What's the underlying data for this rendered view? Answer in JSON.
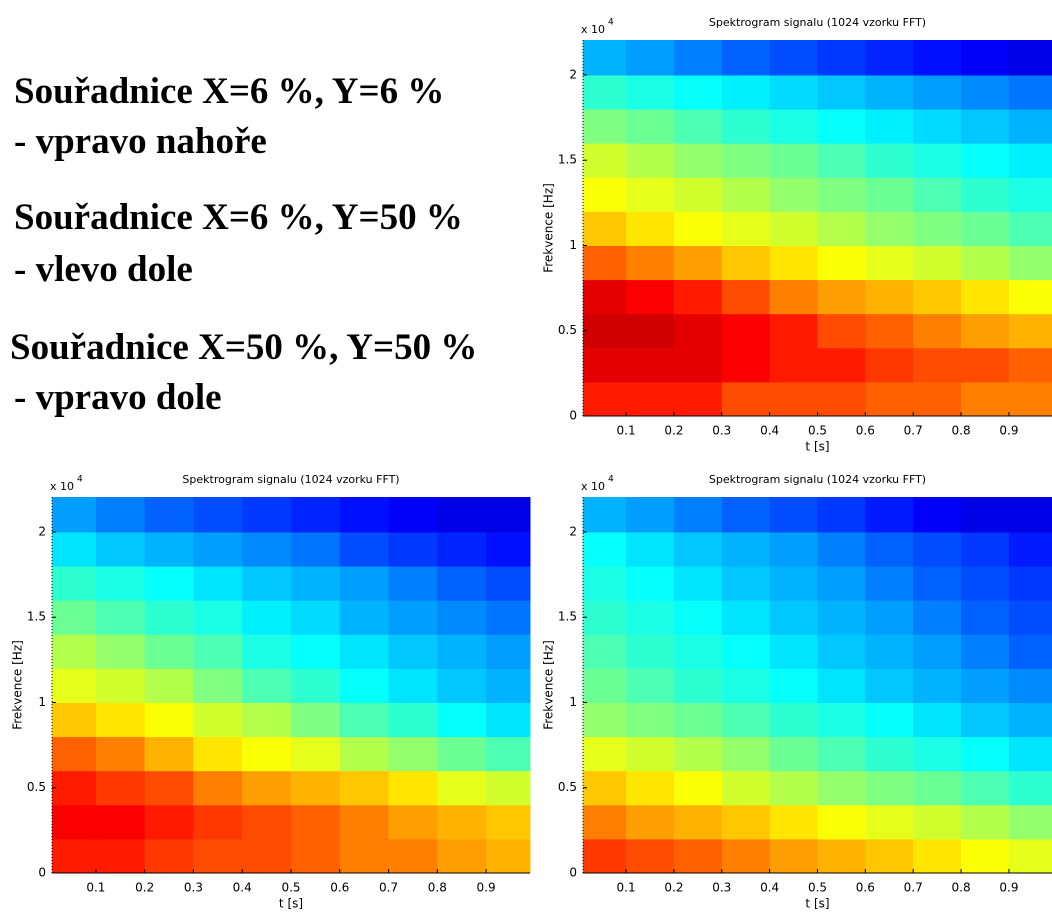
{
  "text_lines": [
    "Souřadnice X=6 %, Y=6 %",
    "- vpravo nahoře",
    "Souřadnice X=6 %, Y=50 %",
    "- vlevo dole",
    "Souřadnice X=50 %, Y=50 %",
    "- vpravo dole"
  ],
  "chart_data": [
    {
      "type": "heatmap",
      "title": "Spektrogram signalu (1024 vzorku FFT)",
      "x_label": "t [s]",
      "y_label": "Frekvence [Hz]",
      "y_multiplier": "x 10",
      "y_multiplier_exponent": "4",
      "colormap": "jet",
      "x": [
        0.01,
        0.1,
        0.2,
        0.3,
        0.4,
        0.5,
        0.6,
        0.7,
        0.8,
        0.9,
        0.99
      ],
      "y": [
        0,
        2000,
        4000,
        6000,
        8000,
        10000,
        12000,
        14000,
        16000,
        18000,
        20000,
        22050
      ],
      "xlim": [
        0.01,
        0.99
      ],
      "ylim": [
        0,
        22050
      ],
      "xticks": [
        0.1,
        0.2,
        0.3,
        0.4,
        0.5,
        0.6,
        0.7,
        0.8,
        0.9
      ],
      "yticks": [
        0,
        {
          "value": 5000,
          "label": "0.5"
        },
        {
          "value": 10000,
          "label": "1"
        },
        {
          "value": 15000,
          "label": "1.5"
        },
        {
          "value": 20000,
          "label": "2"
        }
      ],
      "values": [
        [
          0.85,
          0.85,
          0.85,
          0.8,
          0.8,
          0.8,
          0.78,
          0.78,
          0.75,
          0.75
        ],
        [
          0.9,
          0.9,
          0.9,
          0.88,
          0.85,
          0.85,
          0.82,
          0.8,
          0.8,
          0.78
        ],
        [
          0.92,
          0.92,
          0.9,
          0.88,
          0.85,
          0.8,
          0.78,
          0.75,
          0.72,
          0.7
        ],
        [
          0.9,
          0.88,
          0.85,
          0.8,
          0.75,
          0.72,
          0.7,
          0.68,
          0.65,
          0.62
        ],
        [
          0.78,
          0.75,
          0.72,
          0.68,
          0.65,
          0.62,
          0.6,
          0.58,
          0.55,
          0.52
        ],
        [
          0.68,
          0.65,
          0.62,
          0.6,
          0.58,
          0.55,
          0.52,
          0.5,
          0.48,
          0.45
        ],
        [
          0.62,
          0.6,
          0.58,
          0.55,
          0.52,
          0.5,
          0.48,
          0.45,
          0.42,
          0.4
        ],
        [
          0.58,
          0.55,
          0.52,
          0.5,
          0.48,
          0.45,
          0.42,
          0.4,
          0.38,
          0.36
        ],
        [
          0.5,
          0.48,
          0.45,
          0.42,
          0.4,
          0.38,
          0.36,
          0.34,
          0.32,
          0.3
        ],
        [
          0.42,
          0.4,
          0.38,
          0.36,
          0.34,
          0.32,
          0.3,
          0.28,
          0.26,
          0.24
        ],
        [
          0.3,
          0.28,
          0.25,
          0.22,
          0.2,
          0.18,
          0.16,
          0.14,
          0.12,
          0.1
        ]
      ]
    },
    {
      "type": "heatmap",
      "title": "Spektrogram signalu (1024 vzorku FFT)",
      "x_label": "t [s]",
      "y_label": "Frekvence [Hz]",
      "y_multiplier": "x 10",
      "y_multiplier_exponent": "4",
      "colormap": "jet",
      "x": [
        0.01,
        0.1,
        0.2,
        0.3,
        0.4,
        0.5,
        0.6,
        0.7,
        0.8,
        0.9,
        0.99
      ],
      "y": [
        0,
        2000,
        4000,
        6000,
        8000,
        10000,
        12000,
        14000,
        16000,
        18000,
        20000,
        22050
      ],
      "xlim": [
        0.01,
        0.99
      ],
      "ylim": [
        0,
        22050
      ],
      "xticks": [
        0.1,
        0.2,
        0.3,
        0.4,
        0.5,
        0.6,
        0.7,
        0.8,
        0.9
      ],
      "yticks": [
        0,
        {
          "value": 5000,
          "label": "0.5"
        },
        {
          "value": 10000,
          "label": "1"
        },
        {
          "value": 15000,
          "label": "1.5"
        },
        {
          "value": 20000,
          "label": "2"
        }
      ],
      "values": [
        [
          0.85,
          0.85,
          0.82,
          0.8,
          0.8,
          0.78,
          0.75,
          0.75,
          0.72,
          0.7
        ],
        [
          0.88,
          0.88,
          0.85,
          0.82,
          0.8,
          0.78,
          0.75,
          0.72,
          0.7,
          0.68
        ],
        [
          0.85,
          0.82,
          0.8,
          0.75,
          0.72,
          0.7,
          0.68,
          0.65,
          0.6,
          0.58
        ],
        [
          0.78,
          0.75,
          0.7,
          0.65,
          0.62,
          0.6,
          0.55,
          0.52,
          0.48,
          0.45
        ],
        [
          0.68,
          0.65,
          0.62,
          0.58,
          0.55,
          0.5,
          0.45,
          0.42,
          0.38,
          0.35
        ],
        [
          0.6,
          0.58,
          0.55,
          0.5,
          0.45,
          0.42,
          0.38,
          0.35,
          0.32,
          0.3
        ],
        [
          0.55,
          0.52,
          0.48,
          0.45,
          0.4,
          0.38,
          0.35,
          0.32,
          0.3,
          0.28
        ],
        [
          0.48,
          0.45,
          0.42,
          0.4,
          0.36,
          0.34,
          0.3,
          0.28,
          0.26,
          0.24
        ],
        [
          0.42,
          0.4,
          0.38,
          0.35,
          0.32,
          0.3,
          0.28,
          0.25,
          0.22,
          0.2
        ],
        [
          0.35,
          0.32,
          0.3,
          0.28,
          0.26,
          0.24,
          0.2,
          0.18,
          0.16,
          0.14
        ],
        [
          0.28,
          0.25,
          0.22,
          0.2,
          0.18,
          0.16,
          0.14,
          0.12,
          0.1,
          0.1
        ]
      ]
    },
    {
      "type": "heatmap",
      "title": "Spektrogram signalu (1024 vzorku FFT)",
      "x_label": "t [s]",
      "y_label": "Frekvence [Hz]",
      "y_multiplier": "x 10",
      "y_multiplier_exponent": "4",
      "colormap": "jet",
      "x": [
        0.01,
        0.1,
        0.2,
        0.3,
        0.4,
        0.5,
        0.6,
        0.7,
        0.8,
        0.9,
        0.99
      ],
      "y": [
        0,
        2000,
        4000,
        6000,
        8000,
        10000,
        12000,
        14000,
        16000,
        18000,
        20000,
        22050
      ],
      "xlim": [
        0.01,
        0.99
      ],
      "ylim": [
        0,
        22050
      ],
      "xticks": [
        0.1,
        0.2,
        0.3,
        0.4,
        0.5,
        0.6,
        0.7,
        0.8,
        0.9
      ],
      "yticks": [
        0,
        {
          "value": 5000,
          "label": "0.5"
        },
        {
          "value": 10000,
          "label": "1"
        },
        {
          "value": 15000,
          "label": "1.5"
        },
        {
          "value": 20000,
          "label": "2"
        }
      ],
      "values": [
        [
          0.82,
          0.8,
          0.78,
          0.75,
          0.72,
          0.7,
          0.68,
          0.65,
          0.62,
          0.6
        ],
        [
          0.75,
          0.72,
          0.7,
          0.68,
          0.65,
          0.62,
          0.6,
          0.58,
          0.55,
          0.52
        ],
        [
          0.68,
          0.65,
          0.62,
          0.58,
          0.55,
          0.52,
          0.5,
          0.48,
          0.45,
          0.42
        ],
        [
          0.6,
          0.58,
          0.55,
          0.52,
          0.48,
          0.45,
          0.42,
          0.4,
          0.38,
          0.35
        ],
        [
          0.52,
          0.5,
          0.48,
          0.45,
          0.42,
          0.4,
          0.38,
          0.35,
          0.32,
          0.3
        ],
        [
          0.48,
          0.45,
          0.42,
          0.4,
          0.38,
          0.35,
          0.32,
          0.3,
          0.28,
          0.26
        ],
        [
          0.45,
          0.42,
          0.4,
          0.38,
          0.35,
          0.32,
          0.3,
          0.28,
          0.25,
          0.22
        ],
        [
          0.42,
          0.4,
          0.38,
          0.35,
          0.32,
          0.3,
          0.28,
          0.25,
          0.22,
          0.2
        ],
        [
          0.4,
          0.38,
          0.35,
          0.32,
          0.3,
          0.28,
          0.25,
          0.22,
          0.2,
          0.18
        ],
        [
          0.38,
          0.35,
          0.32,
          0.3,
          0.28,
          0.25,
          0.22,
          0.2,
          0.18,
          0.15
        ],
        [
          0.3,
          0.28,
          0.25,
          0.22,
          0.2,
          0.18,
          0.15,
          0.12,
          0.1,
          0.1
        ]
      ]
    }
  ]
}
